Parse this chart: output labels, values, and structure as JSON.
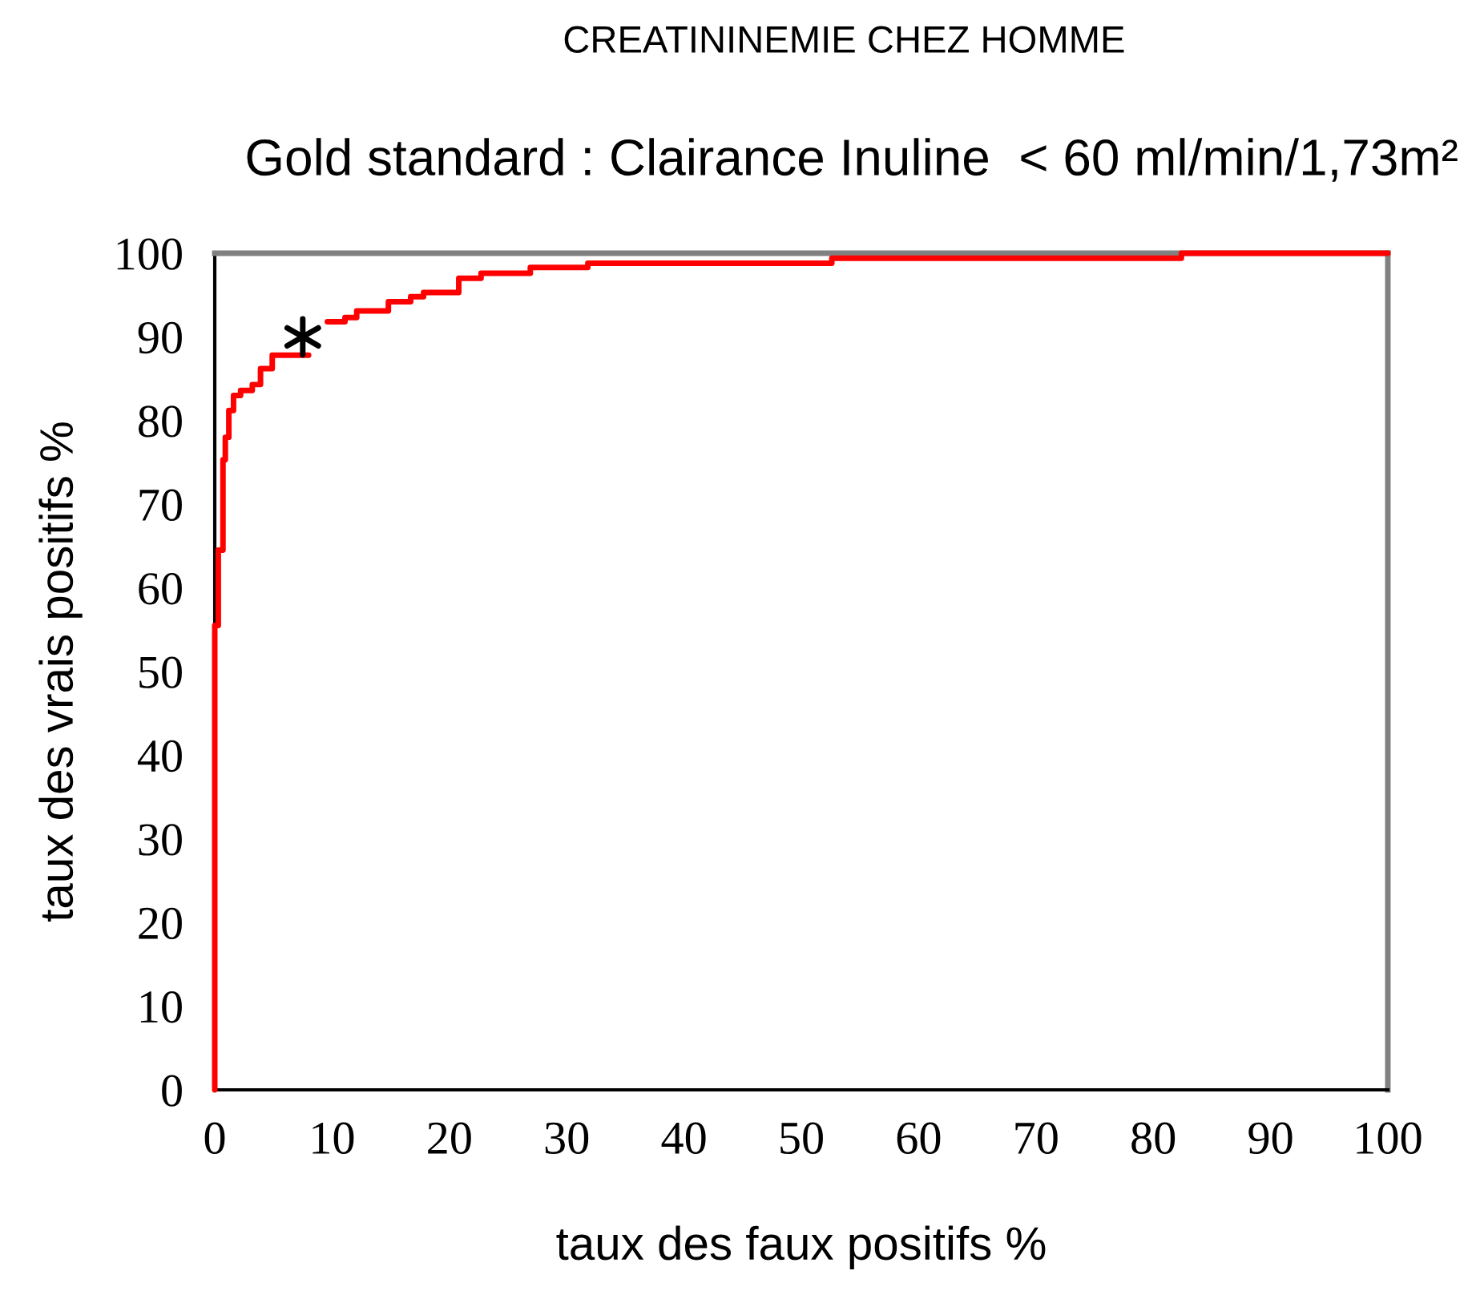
{
  "chart_data": {
    "type": "step",
    "title": "CREATININEMIE CHEZ HOMME",
    "subtitle": "Gold standard : Clairance Inuline  < 60 ml/min/1,73m²",
    "xlabel": "taux des faux positifs %",
    "ylabel": "taux des vrais positifs %",
    "xlim": [
      0,
      100
    ],
    "ylim": [
      0,
      100
    ],
    "xticks": [
      0,
      10,
      20,
      30,
      40,
      50,
      60,
      70,
      80,
      90,
      100
    ],
    "yticks": [
      0,
      10,
      20,
      30,
      40,
      50,
      60,
      70,
      80,
      90,
      100
    ],
    "grid": false,
    "legend": false,
    "series": [
      {
        "color": "#ff0000",
        "line_style": "solid",
        "marker": "none",
        "x": [
          0,
          0,
          0.3,
          0.7,
          0.9,
          1.2,
          1.6,
          2.2,
          3.2,
          3.9,
          4.9,
          6.2,
          8.0,
          9.6,
          11.1,
          12.1,
          14.8,
          16.7,
          17.8,
          20.8,
          22.7,
          26.9,
          31.8,
          52.6,
          82.4,
          100
        ],
        "values": [
          0,
          55.5,
          64.5,
          75.3,
          78,
          81.2,
          83,
          83.6,
          84.3,
          86.2,
          87.8,
          87.8,
          null,
          91.8,
          92.3,
          93.1,
          94.2,
          94.8,
          95.3,
          97.0,
          97.6,
          98.3,
          98.8,
          99.4,
          100,
          100
        ]
      },
      {
        "type": "scatter",
        "color": "#000000",
        "marker": "cross",
        "x": [
          7.5
        ],
        "values": [
          90
        ]
      }
    ]
  }
}
